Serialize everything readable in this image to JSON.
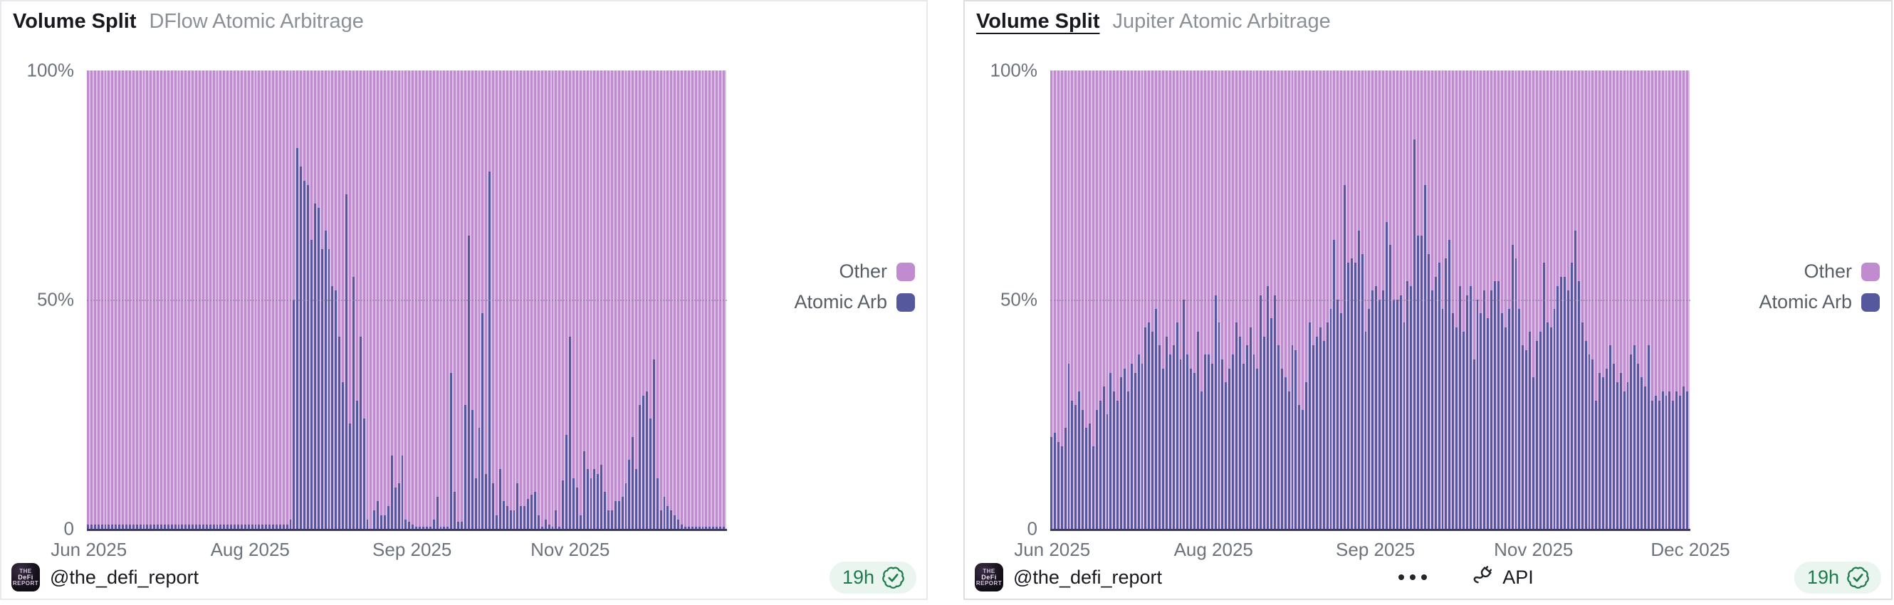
{
  "colors": {
    "other": "#C18CCF",
    "atomic_arb": "#56589E",
    "axis_line": "#3B3B66",
    "pill_bg": "#E9F5EE",
    "pill_text": "#1E7B4B",
    "title_text": "#17191E",
    "subtitle_text": "#8B9097",
    "tick_text": "#6D737C"
  },
  "icons": {
    "verified": "seal-check-icon",
    "more": "ellipsis-icon",
    "api": "plug-icon"
  },
  "left_panel": {
    "title": "Volume Split",
    "subtitle": "DFlow Atomic Arbitrage",
    "legend": [
      {
        "label": "Other",
        "color": "#C18CCF"
      },
      {
        "label": "Atomic Arb",
        "color": "#56589E"
      }
    ],
    "footer": {
      "handle": "@the_defi_report",
      "age": "19h"
    }
  },
  "right_panel": {
    "title": "Volume Split",
    "subtitle": "Jupiter Atomic Arbitrage",
    "legend": [
      {
        "label": "Other",
        "color": "#C18CCF"
      },
      {
        "label": "Atomic Arb",
        "color": "#56589E"
      }
    ],
    "footer": {
      "handle": "@the_defi_report",
      "age": "19h",
      "api_label": "API"
    }
  },
  "chart_data": [
    {
      "type": "bar",
      "variant": "stacked_100_percent",
      "interval": "daily",
      "title": "Volume Split",
      "subtitle": "DFlow Atomic Arbitrage",
      "x_range": "Jun 2025 - Dec 2025",
      "x_ticks": {
        "labels": [
          "Jun 2025",
          "Aug 2025",
          "Sep 2025",
          "Nov 2025"
        ],
        "positions_pct": [
          0.3,
          25.5,
          50.8,
          75.5
        ]
      },
      "y_ticks": {
        "labels": [
          "100%",
          "50%",
          "0"
        ],
        "positions_pct": [
          0,
          50,
          100
        ]
      },
      "ylim": [
        0,
        100
      ],
      "gridline_pct": 50,
      "legend_position": "right",
      "series": [
        {
          "name": "Atomic Arb",
          "color": "#56589E",
          "values": [
            1,
            1,
            1,
            1,
            1,
            1,
            1,
            1,
            1,
            1,
            1,
            1,
            1,
            1,
            1,
            1,
            1,
            1,
            1,
            1,
            1,
            1,
            1,
            1,
            1,
            1,
            1,
            1,
            1,
            1,
            1,
            1,
            1,
            1,
            1,
            1,
            1,
            1,
            1,
            1,
            1,
            1,
            1,
            1,
            1,
            1,
            1,
            1,
            1,
            1,
            1,
            1,
            1,
            1,
            1,
            1,
            1,
            1,
            2,
            50,
            83,
            79,
            76,
            75,
            63,
            71,
            70,
            61,
            65,
            61,
            53,
            52,
            42,
            32,
            73,
            23,
            55,
            28,
            42,
            24,
            2,
            0,
            4,
            6,
            3,
            3,
            5,
            16,
            9,
            10,
            16,
            2,
            1.5,
            1,
            0.5,
            0.5,
            0.5,
            0.5,
            0.5,
            2,
            7,
            0.5,
            0.5,
            0.5,
            34,
            8,
            1.5,
            1.5,
            27,
            64,
            26,
            11,
            22,
            47,
            12,
            78,
            10,
            3,
            13,
            6,
            5,
            4,
            4,
            10,
            5,
            5,
            6.5,
            7.5,
            8,
            3,
            0.5,
            2,
            1,
            0.5,
            4,
            0.5,
            10.5,
            20.5,
            42,
            11,
            9,
            3,
            17,
            13,
            11,
            13,
            12,
            14,
            8,
            4,
            4,
            6,
            6,
            7,
            10,
            15,
            20,
            13,
            27,
            29,
            30,
            24,
            37,
            11,
            4,
            7,
            5,
            4,
            3,
            2,
            1,
            0.5,
            0.5,
            0.5,
            0.5,
            0.5,
            0.5,
            0.5,
            0.5,
            0.5,
            0.5,
            0.5,
            0.5
          ]
        },
        {
          "name": "Other",
          "color": "#C18CCF",
          "derived": "100 minus Atomic Arb (100% stacked)"
        }
      ]
    },
    {
      "type": "bar",
      "variant": "stacked_100_percent",
      "interval": "daily",
      "title": "Volume Split",
      "subtitle": "Jupiter Atomic Arbitrage",
      "x_range": "Jun 2025 - Dec 2025",
      "x_ticks": {
        "labels": [
          "Jun 2025",
          "Aug 2025",
          "Sep 2025",
          "Nov 2025",
          "Dec 2025"
        ],
        "positions_pct": [
          0.3,
          25.5,
          50.8,
          75.5,
          100
        ]
      },
      "y_ticks": {
        "labels": [
          "100%",
          "50%",
          "0"
        ],
        "positions_pct": [
          0,
          50,
          100
        ]
      },
      "ylim": [
        0,
        100
      ],
      "gridline_pct": 50,
      "legend_position": "right",
      "series": [
        {
          "name": "Atomic Arb",
          "color": "#56589E",
          "values": [
            20,
            21,
            19,
            18,
            22,
            36,
            28,
            27,
            30,
            26,
            22,
            23,
            18,
            26,
            28,
            31,
            25,
            34,
            30,
            28,
            33,
            35,
            30,
            36,
            34,
            38,
            36,
            44,
            45,
            43,
            48,
            40,
            35,
            42,
            38,
            40,
            45,
            37,
            50,
            38,
            35,
            34,
            43,
            30,
            38,
            38,
            36,
            51,
            45,
            37,
            32,
            35,
            38,
            45,
            42,
            36,
            40,
            44,
            38,
            35,
            51,
            42,
            53,
            46,
            51,
            40,
            35,
            33,
            30,
            40,
            39,
            27,
            26,
            32,
            45,
            40,
            42,
            44,
            41,
            45,
            48,
            63,
            50,
            47,
            75,
            58,
            59,
            58,
            65,
            60,
            43,
            48,
            52,
            53,
            50,
            52,
            67,
            62,
            50,
            50,
            51,
            45,
            54,
            53,
            85,
            64,
            64,
            75,
            60,
            52,
            55,
            58,
            48,
            59,
            63,
            47,
            44,
            53,
            43,
            51,
            53,
            37,
            50,
            47,
            52,
            46,
            52,
            54,
            54,
            47,
            44,
            48,
            62,
            59,
            48,
            40,
            39,
            43,
            33,
            41,
            43,
            58,
            45,
            44,
            48,
            53,
            55,
            55,
            52,
            58,
            65,
            54,
            45,
            41,
            38,
            37,
            28,
            34,
            33,
            35,
            40,
            36,
            32,
            34,
            30,
            32,
            38,
            40,
            36,
            33,
            31,
            40,
            28,
            29,
            28,
            30,
            29,
            30,
            28,
            30,
            29,
            31,
            30
          ]
        },
        {
          "name": "Other",
          "color": "#C18CCF",
          "derived": "100 minus Atomic Arb (100% stacked)"
        }
      ]
    }
  ]
}
